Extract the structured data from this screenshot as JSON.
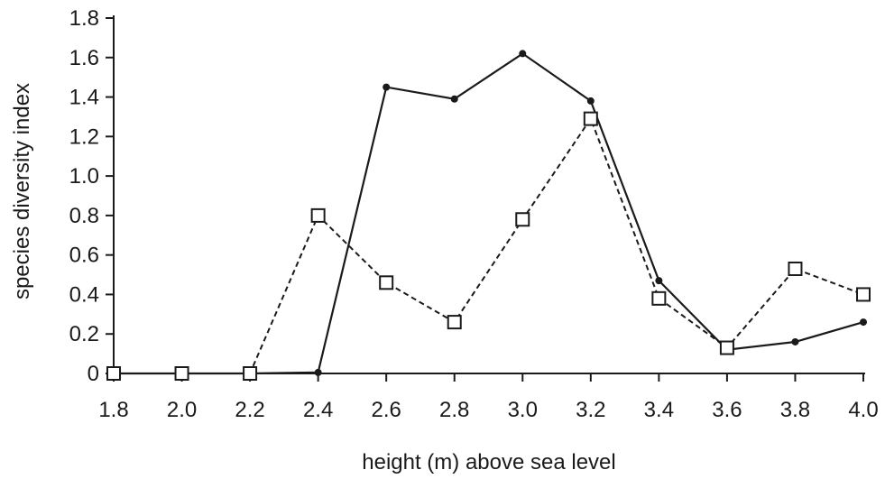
{
  "chart_data": {
    "type": "line",
    "title": "",
    "xlabel": "height (m) above sea level",
    "ylabel": "species diversity index",
    "x": [
      1.8,
      2.0,
      2.2,
      2.4,
      2.6,
      2.8,
      3.0,
      3.2,
      3.4,
      3.6,
      3.8,
      4.0
    ],
    "x_tick_labels": [
      "1.8",
      "2.0",
      "2.2",
      "2.4",
      "2.6",
      "2.8",
      "3.0",
      "3.2",
      "3.4",
      "3.6",
      "3.8",
      "4.0"
    ],
    "y_ticks": [
      0,
      0.2,
      0.4,
      0.6,
      0.8,
      1.0,
      1.2,
      1.4,
      1.6,
      1.8
    ],
    "y_tick_labels": [
      "0",
      "0.2",
      "0.4",
      "0.6",
      "0.8",
      "1.0",
      "1.2",
      "1.4",
      "1.6",
      "1.8"
    ],
    "xlim": [
      1.8,
      4.0
    ],
    "ylim": [
      0,
      1.8
    ],
    "grid": false,
    "legend": "none",
    "series": [
      {
        "style": "solid",
        "marker": "filled-circle",
        "color": "#1a1a1a",
        "values": [
          0,
          0,
          0,
          0.005,
          1.45,
          1.39,
          1.62,
          1.38,
          0.47,
          0.12,
          0.16,
          0.26
        ]
      },
      {
        "style": "dashed",
        "marker": "open-square",
        "color": "#1a1a1a",
        "values": [
          0,
          0,
          0,
          0.8,
          0.46,
          0.26,
          0.78,
          1.29,
          0.38,
          0.13,
          0.53,
          0.4
        ]
      }
    ]
  }
}
